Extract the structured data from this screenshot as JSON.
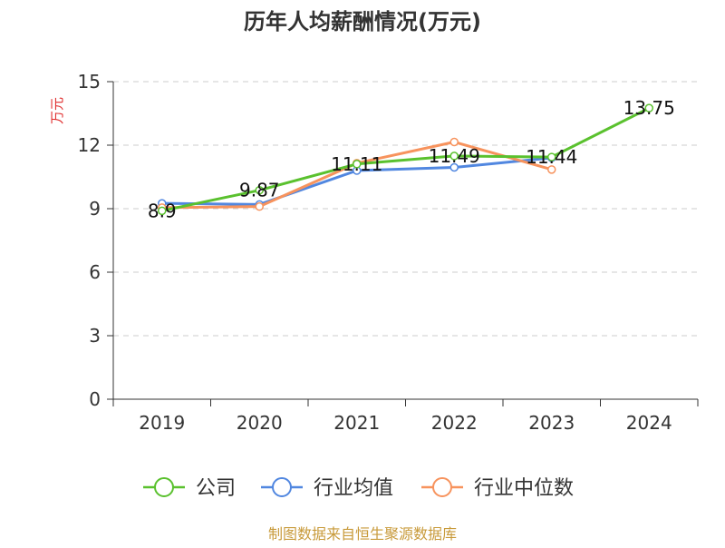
{
  "chart_data": {
    "type": "line",
    "title": "历年人均薪酬情况(万元)",
    "ylabel": "万元",
    "xlabel": "",
    "categories": [
      "2019",
      "2020",
      "2021",
      "2022",
      "2023",
      "2024"
    ],
    "ylim": [
      0,
      15
    ],
    "yticks": [
      0,
      3,
      6,
      9,
      12,
      15
    ],
    "grid": true,
    "legend_position": "bottom",
    "series": [
      {
        "name": "公司",
        "color": "#5ac12e",
        "values": [
          8.9,
          9.87,
          11.11,
          11.49,
          11.44,
          13.75
        ],
        "show_labels": true
      },
      {
        "name": "行业均值",
        "color": "#5187e0",
        "values": [
          9.25,
          9.2,
          10.8,
          10.95,
          11.4,
          null
        ],
        "show_labels": false
      },
      {
        "name": "行业中位数",
        "color": "#f7935d",
        "values": [
          9.05,
          9.1,
          11.15,
          12.15,
          10.85,
          null
        ],
        "show_labels": false
      }
    ],
    "data_labels": [
      "8.9",
      "9.87",
      "11.11",
      "11.49",
      "11.44",
      "13.75"
    ],
    "colors": {
      "axis": "#333333",
      "grid": "#cccccc",
      "ylabel": "#e03030",
      "source": "#c89a3a"
    }
  },
  "source_note": "制图数据来自恒生聚源数据库"
}
